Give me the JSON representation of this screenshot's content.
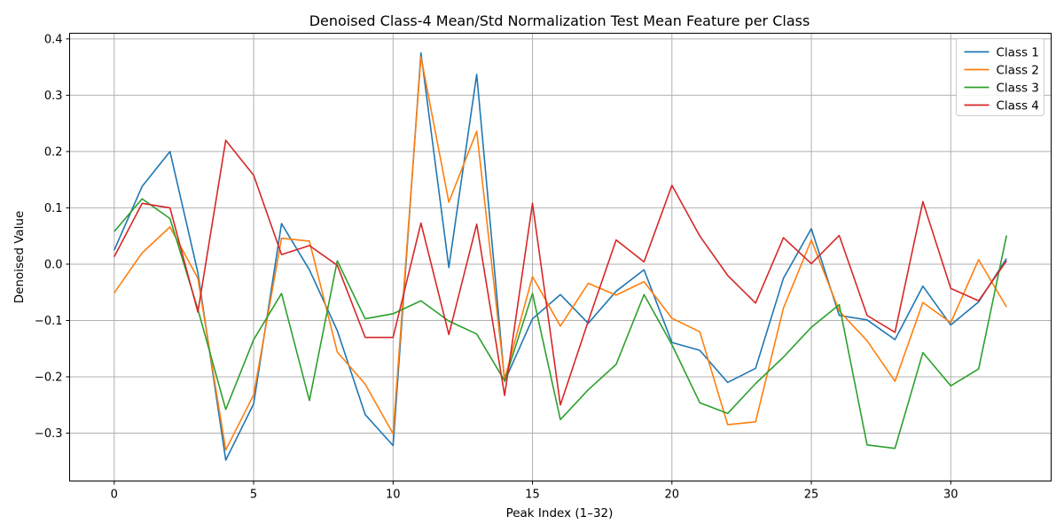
{
  "chart_data": {
    "type": "line",
    "title": "Denoised Class-4 Mean/Std Normalization Test Mean Feature per Class",
    "xlabel": "Peak Index (1–32)",
    "ylabel": "Denoised Value",
    "xlim": [
      -1.6,
      33.6
    ],
    "ylim": [
      -0.385,
      0.41
    ],
    "xticks": [
      0,
      5,
      10,
      15,
      20,
      25,
      30
    ],
    "yticks": [
      -0.3,
      -0.2,
      -0.1,
      0.0,
      0.1,
      0.2,
      0.3,
      0.4
    ],
    "ytick_labels": [
      "−0.3",
      "−0.2",
      "−0.1",
      "0.0",
      "0.1",
      "0.2",
      "0.3",
      "0.4"
    ],
    "grid": true,
    "legend_position": "top-right",
    "x": [
      0,
      1,
      2,
      3,
      4,
      5,
      6,
      7,
      8,
      9,
      10,
      11,
      12,
      13,
      14,
      15,
      16,
      17,
      18,
      19,
      20,
      21,
      22,
      23,
      24,
      25,
      26,
      27,
      28,
      29,
      30,
      31,
      32
    ],
    "series": [
      {
        "name": "Class 1",
        "color": "#1f77b4",
        "values": [
          0.025,
          0.138,
          0.2,
          -0.015,
          -0.348,
          -0.248,
          0.072,
          -0.01,
          -0.118,
          -0.267,
          -0.322,
          0.375,
          -0.006,
          0.337,
          -0.208,
          -0.097,
          -0.054,
          -0.105,
          -0.048,
          -0.01,
          -0.139,
          -0.153,
          -0.21,
          -0.185,
          -0.025,
          0.063,
          -0.091,
          -0.099,
          -0.134,
          -0.039,
          -0.108,
          -0.067,
          0.01
        ]
      },
      {
        "name": "Class 2",
        "color": "#ff7f0e",
        "values": [
          -0.051,
          0.02,
          0.066,
          -0.025,
          -0.33,
          -0.232,
          0.046,
          0.041,
          -0.156,
          -0.213,
          -0.301,
          0.368,
          0.11,
          0.236,
          -0.204,
          -0.022,
          -0.11,
          -0.034,
          -0.055,
          -0.031,
          -0.096,
          -0.12,
          -0.285,
          -0.28,
          -0.078,
          0.043,
          -0.083,
          -0.136,
          -0.208,
          -0.068,
          -0.104,
          0.008,
          -0.076
        ]
      },
      {
        "name": "Class 3",
        "color": "#2ca02c",
        "values": [
          0.058,
          0.116,
          0.081,
          -0.08,
          -0.258,
          -0.134,
          -0.052,
          -0.242,
          0.006,
          -0.097,
          -0.088,
          -0.065,
          -0.101,
          -0.124,
          -0.207,
          -0.052,
          -0.276,
          -0.223,
          -0.178,
          -0.054,
          -0.143,
          -0.246,
          -0.265,
          -0.212,
          -0.165,
          -0.112,
          -0.072,
          -0.321,
          -0.327,
          -0.157,
          -0.216,
          -0.186,
          0.051
        ]
      },
      {
        "name": "Class 4",
        "color": "#d62728",
        "values": [
          0.013,
          0.108,
          0.1,
          -0.085,
          0.22,
          0.158,
          0.017,
          0.033,
          -0.002,
          -0.13,
          -0.13,
          0.073,
          -0.125,
          0.071,
          -0.233,
          0.108,
          -0.25,
          -0.101,
          0.043,
          0.004,
          0.14,
          0.05,
          -0.02,
          -0.069,
          0.047,
          0.001,
          0.051,
          -0.091,
          -0.121,
          0.111,
          -0.043,
          -0.065,
          0.006
        ]
      }
    ]
  }
}
